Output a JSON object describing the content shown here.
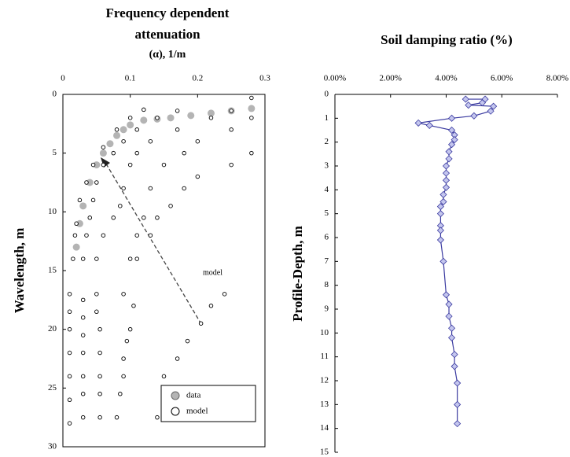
{
  "chart_data": [
    {
      "type": "scatter",
      "title": [
        "Frequency dependent",
        "attenuation"
      ],
      "xlabel": "(α), 1/m",
      "ylabel": "Wavelength, m",
      "annotation": "model",
      "xlim": [
        0,
        0.3
      ],
      "xticks": [
        0,
        0.1,
        0.2,
        0.3
      ],
      "ylim": [
        0,
        30
      ],
      "yticks": [
        0,
        5,
        10,
        15,
        20,
        25,
        30
      ],
      "y_inverted": true,
      "x_axis_top": true,
      "legend": "lower right",
      "series": [
        {
          "name": "data",
          "color": "#b4b4b4",
          "filled": true,
          "x": [
            0.28,
            0.25,
            0.22,
            0.19,
            0.16,
            0.14,
            0.12,
            0.1,
            0.09,
            0.08,
            0.07,
            0.06,
            0.05,
            0.04,
            0.03,
            0.025,
            0.02
          ],
          "y": [
            1.2,
            1.4,
            1.6,
            1.8,
            2.0,
            2.1,
            2.2,
            2.6,
            3.0,
            3.5,
            4.2,
            5.0,
            6.0,
            7.5,
            9.5,
            11,
            13
          ]
        },
        {
          "name": "model",
          "color": "#000000",
          "filled": false,
          "x": [
            0.12,
            0.1,
            0.08,
            0.06,
            0.045,
            0.035,
            0.025,
            0.02,
            0.018,
            0.015,
            0.01,
            0.01,
            0.01,
            0.01,
            0.01,
            0.01,
            0.01,
            0.17,
            0.14,
            0.11,
            0.09,
            0.075,
            0.06,
            0.05,
            0.045,
            0.04,
            0.035,
            0.03,
            0.03,
            0.03,
            0.03,
            0.03,
            0.03,
            0.03,
            0.03,
            0.25,
            0.22,
            0.17,
            0.13,
            0.11,
            0.1,
            0.09,
            0.085,
            0.075,
            0.06,
            0.05,
            0.05,
            0.05,
            0.055,
            0.055,
            0.055,
            0.055,
            0.055,
            0.28,
            0.28,
            0.25,
            0.2,
            0.18,
            0.15,
            0.13,
            0.12,
            0.11,
            0.1,
            0.09,
            0.105,
            0.1,
            0.095,
            0.09,
            0.09,
            0.085,
            0.08,
            0.28,
            0.25,
            0.2,
            0.18,
            0.16,
            0.14,
            0.13,
            0.11,
            0.24,
            0.22,
            0.205,
            0.185,
            0.17,
            0.15,
            0.155,
            0.14
          ],
          "y": [
            1.3,
            2,
            3,
            4.5,
            6,
            7.5,
            9,
            11,
            12,
            14,
            17,
            18.5,
            20,
            22,
            24,
            26,
            28,
            1.4,
            2,
            3,
            4,
            5,
            6,
            7.5,
            9,
            10.5,
            12,
            14,
            17.5,
            19,
            20.5,
            22,
            24,
            25.5,
            27.5,
            1.4,
            2,
            3,
            4,
            5,
            6,
            8,
            9.5,
            10.5,
            12,
            14,
            17,
            18.5,
            20,
            22,
            24,
            25.5,
            27.5,
            0.3,
            2,
            3,
            4,
            5,
            6,
            8,
            10.5,
            12,
            14,
            17,
            18,
            20,
            21,
            22.5,
            24,
            25.5,
            27.5,
            5,
            6,
            7,
            8,
            9.5,
            10.5,
            12,
            14,
            17,
            18,
            19.5,
            21,
            22.5,
            24,
            25.5,
            27.5
          ]
        }
      ]
    },
    {
      "type": "line",
      "title": "Soil damping ratio (%)",
      "ylabel": "Profile-Depth, m",
      "xlim": [
        0,
        8
      ],
      "xticks": [
        {
          "value": 0,
          "label": "0.00%"
        },
        {
          "value": 2,
          "label": "2.00%"
        },
        {
          "value": 4,
          "label": "4.00%"
        },
        {
          "value": 6,
          "label": "6.00%"
        },
        {
          "value": 8,
          "label": "8.00%"
        }
      ],
      "ylim": [
        0,
        15
      ],
      "yticks": [
        0,
        1,
        2,
        3,
        4,
        5,
        6,
        7,
        8,
        9,
        10,
        11,
        12,
        13,
        14,
        15
      ],
      "y_inverted": true,
      "x_axis_top": true,
      "series": [
        {
          "color": "#3a3aa0",
          "marker_fill": "#c4c6ee",
          "x": [
            4.7,
            5.4,
            5.3,
            4.8,
            5.7,
            5.6,
            5.0,
            4.2,
            3.0,
            3.4,
            4.2,
            4.3,
            4.3,
            4.2,
            4.1,
            4.1,
            4.0,
            4.0,
            4.0,
            4.0,
            3.9,
            3.9,
            3.8,
            3.8,
            3.8,
            3.8,
            3.8,
            3.9,
            4.0,
            4.1,
            4.1,
            4.2,
            4.2,
            4.3,
            4.3,
            4.4,
            4.4,
            4.4
          ],
          "y": [
            0.2,
            0.2,
            0.35,
            0.45,
            0.5,
            0.7,
            0.9,
            1.0,
            1.2,
            1.3,
            1.5,
            1.7,
            1.9,
            2.1,
            2.4,
            2.7,
            3.0,
            3.3,
            3.6,
            3.9,
            4.2,
            4.5,
            4.7,
            5.0,
            5.5,
            5.7,
            6.1,
            7.0,
            8.4,
            8.8,
            9.3,
            9.8,
            10.2,
            10.9,
            11.4,
            12.1,
            13.0,
            13.8
          ]
        }
      ]
    }
  ]
}
